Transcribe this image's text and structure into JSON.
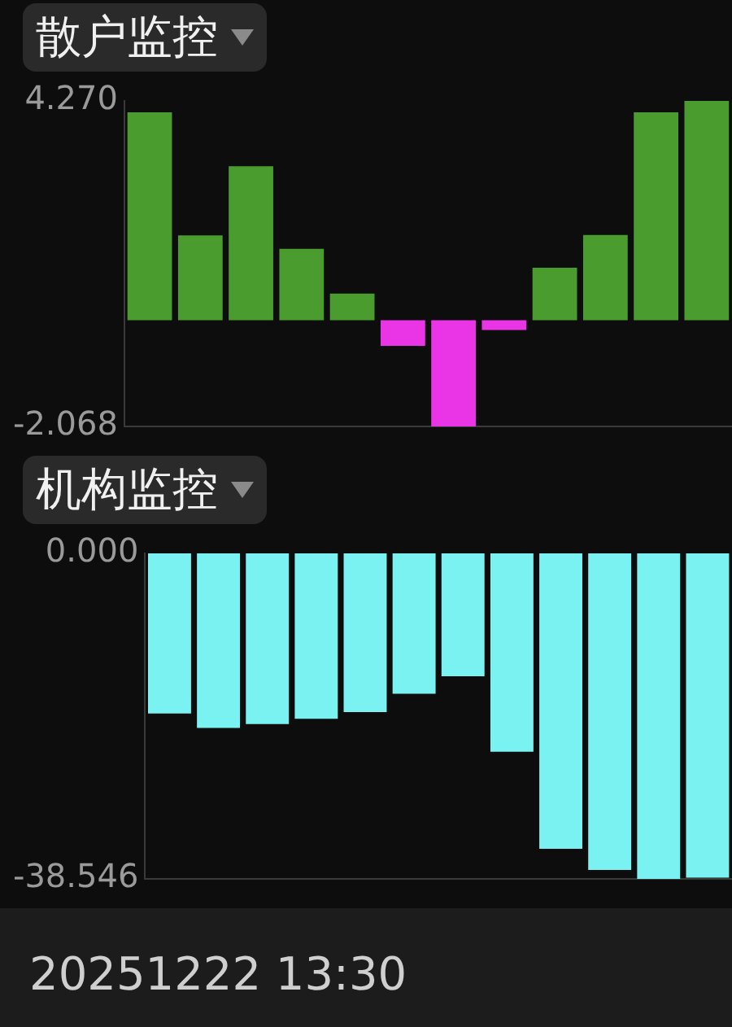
{
  "chart_data": [
    {
      "type": "bar",
      "title": "散户监控",
      "categories": [
        null,
        null,
        null,
        null,
        null,
        null,
        null,
        null,
        null,
        null,
        null,
        null
      ],
      "values": [
        4.05,
        1.65,
        3.0,
        1.39,
        0.52,
        -0.5,
        -2.068,
        -0.19,
        1.02,
        1.66,
        4.05,
        4.27
      ],
      "colors": [
        "#4a9c2f",
        "#4a9c2f",
        "#4a9c2f",
        "#4a9c2f",
        "#4a9c2f",
        "#e935e6",
        "#e935e6",
        "#e935e6",
        "#4a9c2f",
        "#4a9c2f",
        "#4a9c2f",
        "#4a9c2f"
      ],
      "ylim": [
        -2.068,
        4.27
      ],
      "yticks": [
        {
          "value": -2.068,
          "label": "-2.068"
        },
        {
          "value": 4.27,
          "label": "4.270"
        }
      ],
      "tick_labels": "y",
      "grid": false,
      "legend": false
    },
    {
      "type": "bar",
      "title": "机构监控",
      "categories": [
        null,
        null,
        null,
        null,
        null,
        null,
        null,
        null,
        null,
        null,
        null,
        null
      ],
      "values": [
        -18.96,
        -20.66,
        -20.21,
        -19.59,
        -18.78,
        -16.63,
        -14.56,
        -23.48,
        -34.97,
        -37.48,
        -38.546,
        -38.4
      ],
      "color": "#7af2f2",
      "ylim": [
        -38.546,
        0
      ],
      "yticks": [
        {
          "value": -38.546,
          "label": "-38.546"
        },
        {
          "value": 0,
          "label": "0.000"
        }
      ],
      "tick_labels": "y",
      "grid": false,
      "legend": false,
      "annotations": [
        "20251222 13:30"
      ]
    }
  ]
}
